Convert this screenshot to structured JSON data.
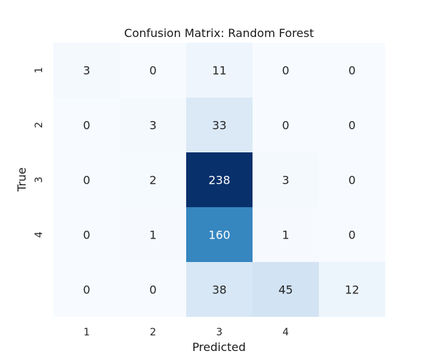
{
  "chart_data": {
    "type": "heatmap",
    "title": "Confusion Matrix: Random Forest",
    "xlabel": "Predicted",
    "ylabel": "True",
    "x_tick_labels": [
      "1",
      "2",
      "3",
      "4",
      ""
    ],
    "y_tick_labels": [
      "1",
      "2",
      "3",
      "4",
      ""
    ],
    "matrix": [
      [
        3,
        0,
        11,
        0,
        0
      ],
      [
        0,
        3,
        33,
        0,
        0
      ],
      [
        0,
        2,
        238,
        3,
        0
      ],
      [
        0,
        1,
        160,
        1,
        0
      ],
      [
        0,
        0,
        38,
        45,
        12
      ]
    ],
    "value_range": [
      0,
      238
    ],
    "colormap": "Blues",
    "colorbar": false,
    "grid": false
  }
}
